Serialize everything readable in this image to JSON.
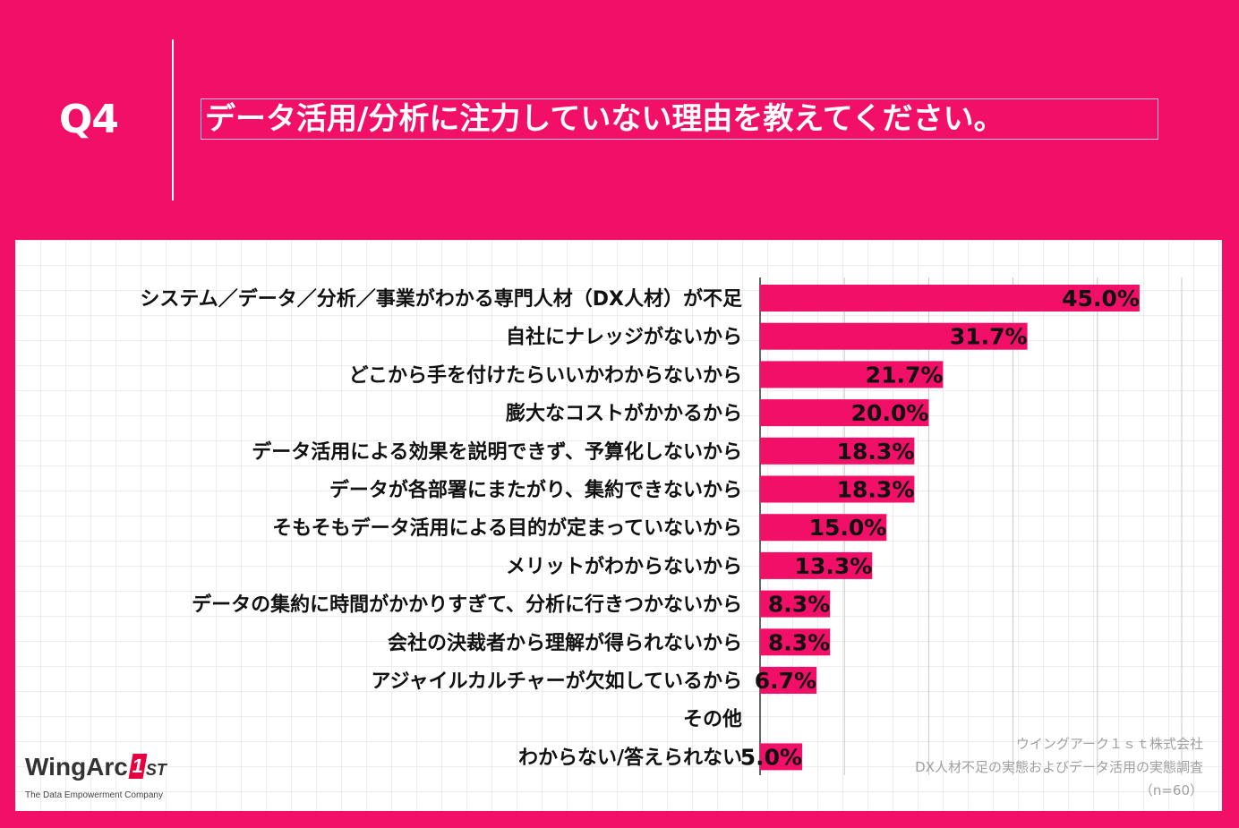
{
  "header": {
    "question_number": "Q4",
    "question_text": "データ活用/分析に注力していない理由を教えてください。"
  },
  "chart_data": {
    "type": "bar",
    "orientation": "horizontal",
    "categories": [
      "システム／データ／分析／事業がわかる専門人材（DX人材）が不足",
      "自社にナレッジがないから",
      "どこから手を付けたらいいかわからないから",
      "膨大なコストがかかるから",
      "データ活用による効果を説明できず、予算化しないから",
      "データが各部署にまたがり、集約できないから",
      "そもそもデータ活用による目的が定まっていないから",
      "メリットがわからないから",
      "データの集約に時間がかかりすぎて、分析に行きつかないから",
      "会社の決裁者から理解が得られないから",
      "アジャイルカルチャーが欠如しているから",
      "その他",
      "わからない/答えられない"
    ],
    "values": [
      45.0,
      31.7,
      21.7,
      20.0,
      18.3,
      18.3,
      15.0,
      13.3,
      8.3,
      8.3,
      6.7,
      null,
      5.0
    ],
    "value_labels": [
      "45.0%",
      "31.7%",
      "21.7%",
      "20.0%",
      "18.3%",
      "18.3%",
      "15.0%",
      "13.3%",
      "8.3%",
      "8.3%",
      "6.7%",
      "",
      "5.0%"
    ],
    "xlim": [
      0,
      50
    ],
    "grid_step": 10,
    "bar_color": "#f20f68",
    "title": "データ活用/分析に注力していない理由を教えてください。"
  },
  "source": {
    "company": "ウイングアーク１ｓｔ株式会社",
    "survey": "DX人材不足の実態およびデータ活用の実態調査",
    "sample": "（n=60）"
  },
  "logo": {
    "name_prefix": "WingArc",
    "mark": "1",
    "suffix": "ST",
    "tagline": "The Data Empowerment Company"
  },
  "colors": {
    "background": "#f20f68",
    "panel": "#ffffff",
    "bar": "#f20f68"
  }
}
